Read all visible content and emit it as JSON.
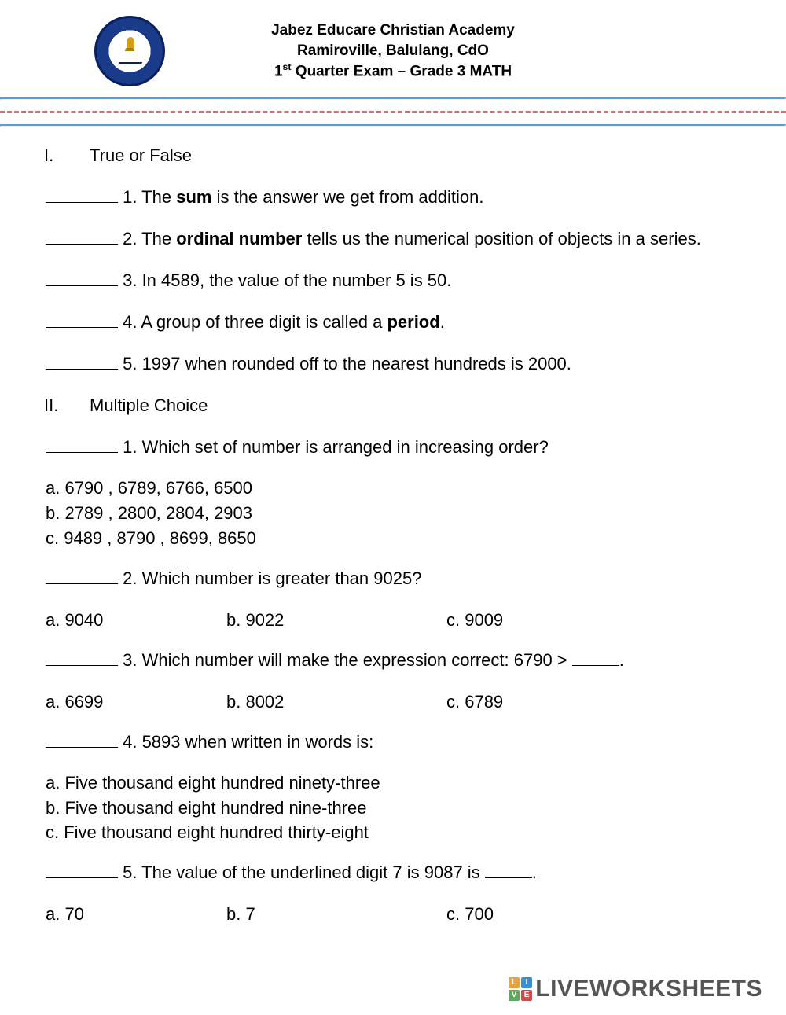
{
  "header": {
    "line1": "Jabez Educare Christian Academy",
    "line2": "Ramiroville, Balulang, CdO",
    "line3_prefix": "1",
    "line3_sup": "st",
    "line3_rest": " Quarter Exam – Grade 3 MATH"
  },
  "sections": {
    "s1_roman": "I.",
    "s1_title": "True or False",
    "s2_roman": "II.",
    "s2_title": "Multiple Choice"
  },
  "tf": {
    "q1_pre": " 1. The ",
    "q1_bold": "sum",
    "q1_post": " is the answer we get from addition.",
    "q2_pre": " 2. The ",
    "q2_bold": "ordinal number",
    "q2_post": " tells us the numerical position of objects in a series.",
    "q3": " 3. In 4589, the value of the number 5 is 50.",
    "q4_pre": " 4. A group of three digit is called a ",
    "q4_bold": "period",
    "q4_post": ".",
    "q5": " 5. 1997 when rounded off to the nearest hundreds is 2000."
  },
  "mc": {
    "q1_text": " 1. Which set of number is arranged in increasing order?",
    "q1_a": "a. 6790 , 6789, 6766, 6500",
    "q1_b": "b. 2789 , 2800, 2804, 2903",
    "q1_c": "c. 9489 , 8790 , 8699, 8650",
    "q2_text": " 2. Which number is greater than 9025?",
    "q2_a": "a. 9040",
    "q2_b": "b. 9022",
    "q2_c": "c. 9009",
    "q3_text_pre": " 3. Which number will make the expression correct: 6790 > ",
    "q3_text_post": ".",
    "q3_a": "a. 6699",
    "q3_b": "b. 8002",
    "q3_c": "c. 6789",
    "q4_text": " 4. 5893 when written in words is:",
    "q4_a": "a. Five thousand eight hundred ninety-three",
    "q4_b": "b. Five thousand eight hundred nine-three",
    "q4_c": "c. Five thousand eight hundred thirty-eight",
    "q5_text_pre": " 5. The value of the underlined digit 7 is 9087 is ",
    "q5_text_post": ".",
    "q5_a": "a. 70",
    "q5_b": "b. 7",
    "q5_c": "c. 700"
  },
  "watermark": {
    "text": "LIVEWORKSHEETS",
    "b1": "L",
    "b2": "I",
    "b3": "V",
    "b4": "E"
  }
}
